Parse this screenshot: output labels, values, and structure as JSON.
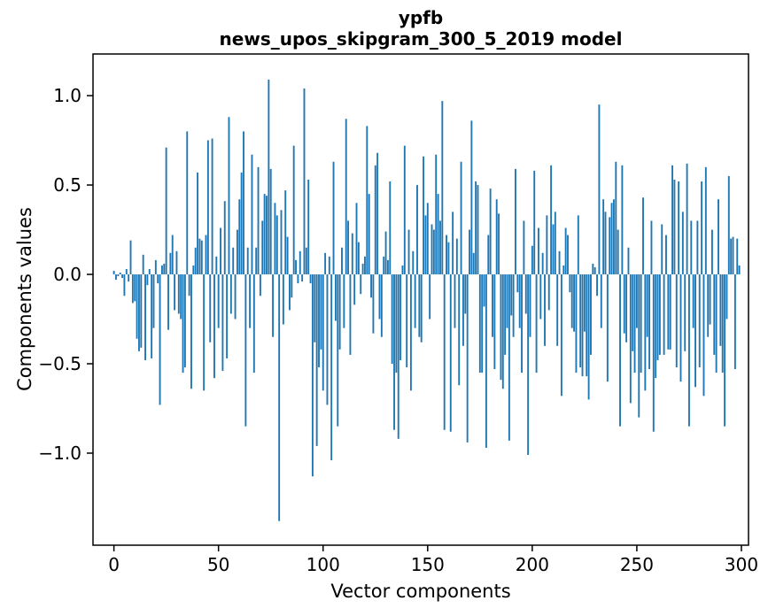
{
  "chart_data": {
    "type": "bar",
    "title": "ypfb",
    "subtitle": "news_upos_skipgram_300_5_2019 model",
    "xlabel": "Vector components",
    "ylabel": "Components values",
    "x_ticks": [
      0,
      50,
      100,
      150,
      200,
      250,
      300
    ],
    "x_tick_labels": [
      "0",
      "50",
      "100",
      "150",
      "200",
      "250",
      "300"
    ],
    "y_ticks": [
      1.0,
      0.5,
      0.0,
      -0.5,
      -1.0
    ],
    "y_tick_labels": [
      "1.0",
      "0.5",
      "0.0",
      "−0.5",
      "−1.0"
    ],
    "xlim": [
      -10,
      303.4
    ],
    "ylim": [
      -1.515,
      1.233
    ],
    "grid": false,
    "legend": "none",
    "bar_color": "#1f77b4",
    "axis_color": "#000000",
    "n_components": 300,
    "values": [
      0.02,
      -0.03,
      -0.01,
      0.01,
      -0.02,
      -0.12,
      0.03,
      -0.04,
      0.19,
      -0.16,
      -0.15,
      -0.36,
      -0.43,
      -0.41,
      0.11,
      -0.48,
      -0.06,
      0.03,
      -0.47,
      -0.3,
      0.08,
      -0.05,
      -0.73,
      0.05,
      0.06,
      0.71,
      -0.31,
      0.12,
      0.22,
      -0.2,
      0.13,
      -0.22,
      -0.25,
      -0.55,
      -0.52,
      0.8,
      -0.12,
      -0.64,
      0.05,
      0.15,
      0.57,
      0.2,
      0.19,
      -0.65,
      0.22,
      0.75,
      -0.38,
      0.76,
      -0.58,
      0.1,
      -0.3,
      0.26,
      -0.54,
      0.41,
      -0.47,
      0.88,
      -0.22,
      0.15,
      -0.25,
      0.25,
      0.42,
      0.57,
      0.8,
      -0.85,
      0.15,
      -0.3,
      0.67,
      -0.55,
      0.15,
      0.6,
      -0.12,
      0.3,
      0.45,
      0.44,
      1.09,
      0.59,
      -0.35,
      0.4,
      0.33,
      -1.38,
      0.36,
      -0.28,
      0.47,
      0.21,
      -0.2,
      -0.13,
      0.72,
      0.08,
      -0.05,
      0.13,
      -0.04,
      1.04,
      0.15,
      0.53,
      -0.05,
      -1.13,
      -0.38,
      -0.96,
      -0.52,
      -0.42,
      -0.65,
      0.12,
      -0.73,
      0.1,
      -1.04,
      0.63,
      -0.26,
      -0.85,
      -0.42,
      0.15,
      -0.3,
      0.87,
      0.3,
      -0.45,
      0.23,
      -0.17,
      0.4,
      0.18,
      -0.11,
      0.06,
      0.1,
      0.83,
      0.45,
      -0.13,
      -0.33,
      0.61,
      0.68,
      -0.25,
      -0.35,
      0.1,
      0.24,
      0.08,
      0.52,
      -0.5,
      -0.87,
      -0.55,
      -0.92,
      -0.48,
      0.05,
      0.72,
      -0.52,
      0.25,
      -0.65,
      0.13,
      -0.3,
      0.5,
      -0.35,
      -0.38,
      0.66,
      0.33,
      0.4,
      -0.25,
      0.28,
      0.25,
      0.67,
      0.45,
      0.3,
      0.97,
      -0.87,
      0.22,
      0.18,
      -0.88,
      0.35,
      -0.3,
      0.2,
      -0.62,
      0.63,
      -0.4,
      -0.22,
      -0.94,
      0.25,
      0.86,
      0.12,
      0.52,
      0.5,
      -0.55,
      -0.55,
      -0.18,
      -0.97,
      0.22,
      0.48,
      -0.35,
      -0.53,
      0.42,
      0.34,
      -0.59,
      -0.64,
      -0.45,
      -0.3,
      -0.93,
      -0.23,
      -0.35,
      0.59,
      -0.1,
      -0.3,
      -0.55,
      0.3,
      -0.22,
      -1.01,
      -0.35,
      0.16,
      0.58,
      -0.55,
      0.26,
      -0.25,
      0.12,
      -0.4,
      0.33,
      -0.2,
      0.61,
      0.28,
      0.35,
      -0.4,
      0.13,
      -0.68,
      0.05,
      0.26,
      0.22,
      -0.1,
      -0.3,
      -0.32,
      -0.55,
      0.33,
      -0.52,
      -0.57,
      -0.32,
      -0.57,
      -0.7,
      -0.45,
      0.06,
      0.04,
      -0.12,
      0.95,
      -0.3,
      0.42,
      0.35,
      -0.6,
      0.32,
      0.4,
      0.42,
      0.63,
      0.25,
      -0.85,
      0.61,
      -0.33,
      -0.38,
      0.15,
      -0.72,
      -0.43,
      -0.55,
      -0.3,
      -0.8,
      -0.55,
      0.43,
      -0.65,
      -0.35,
      -0.53,
      0.3,
      -0.88,
      -0.58,
      -0.48,
      -0.45,
      0.28,
      -0.45,
      0.22,
      -0.42,
      -0.42,
      0.61,
      0.53,
      -0.52,
      0.52,
      -0.6,
      0.35,
      -0.43,
      0.62,
      -0.85,
      0.3,
      -0.3,
      -0.63,
      0.3,
      -0.52,
      0.52,
      -0.68,
      0.6,
      -0.35,
      -0.28,
      0.25,
      -0.45,
      -0.55,
      0.42,
      -0.4,
      -0.55,
      -0.85,
      -0.25,
      0.55,
      0.2,
      0.21,
      -0.53,
      0.2,
      0.05
    ]
  }
}
